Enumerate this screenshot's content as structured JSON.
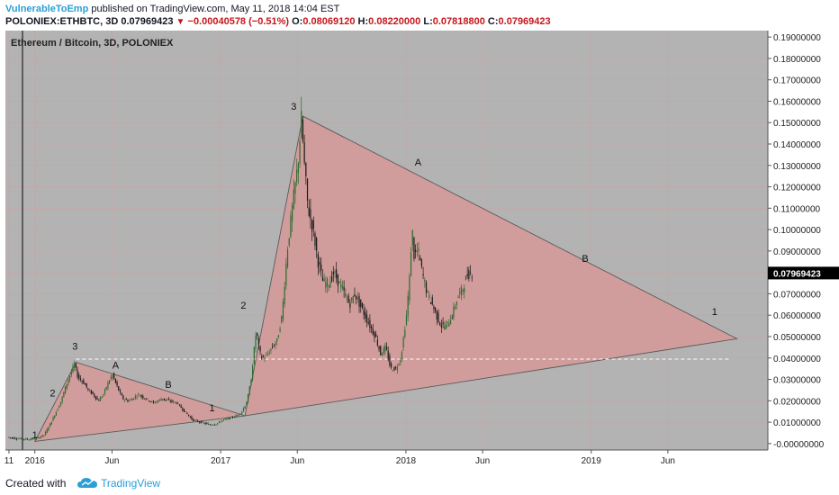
{
  "header": {
    "author": "VulnerableToEmp",
    "published_text": " published on TradingView.com, May 11, 2018 14:04 EST",
    "symbol": "POLONIEX:ETHBTC, 3D",
    "last": "0.07969423",
    "change": "−0.00040578 (−0.51%)",
    "open_label": "O:",
    "open": "0.08069120",
    "high_label": "H:",
    "high": "0.08220000",
    "low_label": "L:",
    "low": "0.07818800",
    "close_label": "C:",
    "close": "0.07969423"
  },
  "footer": {
    "created_with": "Created with",
    "brand": "TradingView"
  },
  "colors": {
    "plot_bg": "#b3b3b3",
    "fill": "#d49a9a",
    "up_candle": "#2f6b2f",
    "down_candle": "#1a1a1a",
    "price_tag": "#000000",
    "accent": "#2a9fd6"
  },
  "chart_data": {
    "type": "candlestick",
    "title": "Ethereum / Bitcoin, 3D, POLONIEX",
    "x_ticks": [
      "11",
      "2016",
      "Jun",
      "2017",
      "Jun",
      "2018",
      "Jun",
      "2019",
      "Jun"
    ],
    "y_ticks": [
      "0.19000000",
      "0.18000000",
      "0.17000000",
      "0.16000000",
      "0.15000000",
      "0.14000000",
      "0.13000000",
      "0.12000000",
      "0.11000000",
      "0.10000000",
      "0.09000000",
      "0.08000000",
      "0.07000000",
      "0.06000000",
      "0.05000000",
      "0.04000000",
      "0.03000000",
      "0.02000000",
      "0.01000000",
      "-0.00000000"
    ],
    "ylim": [
      -0.003,
      0.193
    ],
    "last_price": "0.07969423",
    "dashed_level": 0.0395,
    "price_path": [
      [
        "2015-11-11",
        0.003
      ],
      [
        "2015-11-25",
        0.0025
      ],
      [
        "2015-12-10",
        0.0022
      ],
      [
        "2015-12-25",
        0.002
      ],
      [
        "2016-01-08",
        0.0025
      ],
      [
        "2016-01-22",
        0.004
      ],
      [
        "2016-02-05",
        0.01
      ],
      [
        "2016-02-15",
        0.015
      ],
      [
        "2016-02-25",
        0.02
      ],
      [
        "2016-03-05",
        0.027
      ],
      [
        "2016-03-15",
        0.033
      ],
      [
        "2016-03-22",
        0.037
      ],
      [
        "2016-03-29",
        0.031
      ],
      [
        "2016-04-08",
        0.029
      ],
      [
        "2016-04-18",
        0.025
      ],
      [
        "2016-04-28",
        0.023
      ],
      [
        "2016-05-08",
        0.02
      ],
      [
        "2016-05-18",
        0.023
      ],
      [
        "2016-05-28",
        0.029
      ],
      [
        "2016-06-05",
        0.032
      ],
      [
        "2016-06-15",
        0.026
      ],
      [
        "2016-06-25",
        0.021
      ],
      [
        "2016-07-05",
        0.02
      ],
      [
        "2016-07-15",
        0.021
      ],
      [
        "2016-07-25",
        0.023
      ],
      [
        "2016-08-10",
        0.021
      ],
      [
        "2016-08-25",
        0.019
      ],
      [
        "2016-09-10",
        0.021
      ],
      [
        "2016-09-25",
        0.02
      ],
      [
        "2016-10-10",
        0.019
      ],
      [
        "2016-10-25",
        0.015
      ],
      [
        "2016-11-10",
        0.011
      ],
      [
        "2016-11-25",
        0.01
      ],
      [
        "2016-12-10",
        0.009
      ],
      [
        "2016-12-25",
        0.009
      ],
      [
        "2017-01-08",
        0.011
      ],
      [
        "2017-01-22",
        0.012
      ],
      [
        "2017-02-05",
        0.013
      ],
      [
        "2017-02-15",
        0.015
      ],
      [
        "2017-02-25",
        0.02
      ],
      [
        "2017-03-05",
        0.03
      ],
      [
        "2017-03-10",
        0.042
      ],
      [
        "2017-03-15",
        0.053
      ],
      [
        "2017-03-20",
        0.045
      ],
      [
        "2017-03-25",
        0.04
      ],
      [
        "2017-04-05",
        0.041
      ],
      [
        "2017-04-15",
        0.045
      ],
      [
        "2017-04-25",
        0.048
      ],
      [
        "2017-05-05",
        0.06
      ],
      [
        "2017-05-15",
        0.09
      ],
      [
        "2017-05-25",
        0.11
      ],
      [
        "2017-06-05",
        0.13
      ],
      [
        "2017-06-12",
        0.152
      ],
      [
        "2017-06-18",
        0.13
      ],
      [
        "2017-06-25",
        0.11
      ],
      [
        "2017-07-05",
        0.1
      ],
      [
        "2017-07-15",
        0.085
      ],
      [
        "2017-07-25",
        0.075
      ],
      [
        "2017-08-05",
        0.075
      ],
      [
        "2017-08-15",
        0.08
      ],
      [
        "2017-08-25",
        0.075
      ],
      [
        "2017-09-05",
        0.07
      ],
      [
        "2017-09-15",
        0.065
      ],
      [
        "2017-09-25",
        0.07
      ],
      [
        "2017-10-05",
        0.065
      ],
      [
        "2017-10-15",
        0.06
      ],
      [
        "2017-10-25",
        0.055
      ],
      [
        "2017-11-05",
        0.05
      ],
      [
        "2017-11-15",
        0.042
      ],
      [
        "2017-11-25",
        0.045
      ],
      [
        "2017-12-05",
        0.035
      ],
      [
        "2017-12-15",
        0.035
      ],
      [
        "2017-12-25",
        0.04
      ],
      [
        "2018-01-05",
        0.06
      ],
      [
        "2018-01-12",
        0.08
      ],
      [
        "2018-01-16",
        0.102
      ],
      [
        "2018-01-20",
        0.088
      ],
      [
        "2018-01-28",
        0.09
      ],
      [
        "2018-02-05",
        0.08
      ],
      [
        "2018-02-15",
        0.07
      ],
      [
        "2018-02-25",
        0.065
      ],
      [
        "2018-03-05",
        0.06
      ],
      [
        "2018-03-15",
        0.055
      ],
      [
        "2018-03-25",
        0.055
      ],
      [
        "2018-04-05",
        0.06
      ],
      [
        "2018-04-15",
        0.068
      ],
      [
        "2018-04-25",
        0.072
      ],
      [
        "2018-05-05",
        0.079
      ],
      [
        "2018-05-11",
        0.0797
      ]
    ],
    "wave_labels": [
      {
        "text": "1",
        "x": "2016-01-01",
        "y": 0.0025
      },
      {
        "text": "2",
        "x": "2016-02-05",
        "y": 0.022
      },
      {
        "text": "3",
        "x": "2016-03-20",
        "y": 0.044
      },
      {
        "text": "A",
        "x": "2016-06-08",
        "y": 0.035
      },
      {
        "text": "B",
        "x": "2016-09-20",
        "y": 0.026
      },
      {
        "text": "1",
        "x": "2016-12-15",
        "y": 0.015
      },
      {
        "text": "2",
        "x": "2017-02-15",
        "y": 0.063
      },
      {
        "text": "3",
        "x": "2017-05-25",
        "y": 0.156
      },
      {
        "text": "A",
        "x": "2018-01-25",
        "y": 0.13
      },
      {
        "text": "B",
        "x": "2018-12-20",
        "y": 0.085
      },
      {
        "text": "1",
        "x": "2019-09-01",
        "y": 0.06
      }
    ],
    "triangles": [
      {
        "points": [
          [
            "2016-01-01",
            0.001
          ],
          [
            "2016-03-22",
            0.038
          ],
          [
            "2017-02-18",
            0.013
          ]
        ]
      },
      {
        "points": [
          [
            "2017-02-18",
            0.013
          ],
          [
            "2017-06-12",
            0.153
          ],
          [
            "2019-10-15",
            0.049
          ]
        ]
      }
    ]
  }
}
